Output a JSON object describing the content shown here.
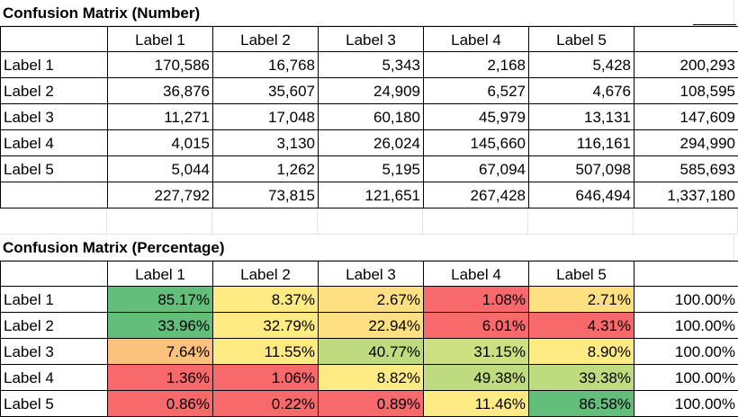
{
  "number_table": {
    "title": "Confusion Matrix (Number)",
    "headers": [
      "Label 1",
      "Label 2",
      "Label 3",
      "Label 4",
      "Label 5"
    ],
    "rows": [
      {
        "label": "Label 1",
        "values": [
          "170,586",
          "16,768",
          "5,343",
          "2,168",
          "5,428"
        ],
        "total": "200,293"
      },
      {
        "label": "Label 2",
        "values": [
          "36,876",
          "35,607",
          "24,909",
          "6,527",
          "4,676"
        ],
        "total": "108,595"
      },
      {
        "label": "Label 3",
        "values": [
          "11,271",
          "17,048",
          "60,180",
          "45,979",
          "13,131"
        ],
        "total": "147,609"
      },
      {
        "label": "Label 4",
        "values": [
          "4,015",
          "3,130",
          "26,024",
          "145,660",
          "116,161"
        ],
        "total": "294,990"
      },
      {
        "label": "Label 5",
        "values": [
          "5,044",
          "1,262",
          "5,195",
          "67,094",
          "507,098"
        ],
        "total": "585,693"
      }
    ],
    "column_totals": [
      "227,792",
      "73,815",
      "121,651",
      "267,428",
      "646,494"
    ],
    "grand_total": "1,337,180"
  },
  "percentage_table": {
    "title": "Confusion Matrix (Percentage)",
    "headers": [
      "Label 1",
      "Label 2",
      "Label 3",
      "Label 4",
      "Label 5"
    ],
    "rows": [
      {
        "label": "Label 1",
        "values": [
          "85.17%",
          "8.37%",
          "2.67%",
          "1.08%",
          "2.71%"
        ],
        "total": "100.00%"
      },
      {
        "label": "Label 2",
        "values": [
          "33.96%",
          "32.79%",
          "22.94%",
          "6.01%",
          "4.31%"
        ],
        "total": "100.00%"
      },
      {
        "label": "Label 3",
        "values": [
          "7.64%",
          "11.55%",
          "40.77%",
          "31.15%",
          "8.90%"
        ],
        "total": "100.00%"
      },
      {
        "label": "Label 4",
        "values": [
          "1.36%",
          "1.06%",
          "8.82%",
          "49.38%",
          "39.38%"
        ],
        "total": "100.00%"
      },
      {
        "label": "Label 5",
        "values": [
          "0.86%",
          "0.22%",
          "0.89%",
          "11.46%",
          "86.58%"
        ],
        "total": "100.00%"
      }
    ],
    "heat_colors": [
      [
        "#63be7b",
        "#ffeb84",
        "#fedf81",
        "#f8696b",
        "#fedf81"
      ],
      [
        "#63be7b",
        "#ffeb84",
        "#fedf81",
        "#f8696b",
        "#f8696b"
      ],
      [
        "#fcc17c",
        "#ffeb84",
        "#bfdb7f",
        "#cde081",
        "#ffeb84"
      ],
      [
        "#f8696b",
        "#f8696b",
        "#ffeb84",
        "#bfdb7f",
        "#bfdb7f"
      ],
      [
        "#f8696b",
        "#f8696b",
        "#f8696b",
        "#ffeb84",
        "#63be7b"
      ]
    ]
  }
}
